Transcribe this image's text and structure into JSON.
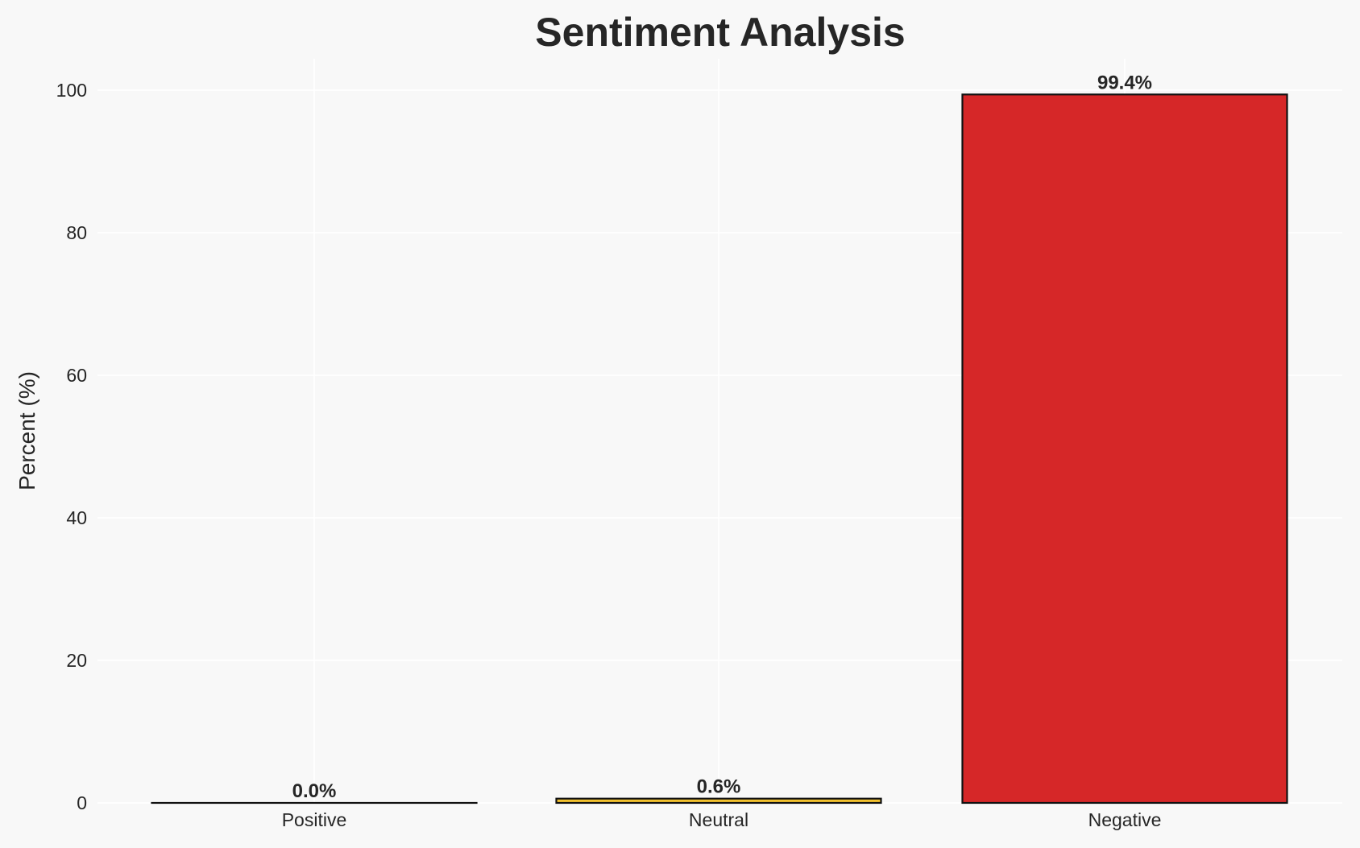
{
  "chart_data": {
    "type": "bar",
    "title": "Sentiment Analysis",
    "xlabel": "",
    "ylabel": "Percent (%)",
    "categories": [
      "Positive",
      "Neutral",
      "Negative"
    ],
    "values": [
      0.0,
      0.6,
      99.4
    ],
    "data_labels": [
      "0.0%",
      "0.6%",
      "99.4%"
    ],
    "colors": [
      "#2ca02c",
      "#f2c12e",
      "#d62728"
    ],
    "edge_color": "#111111",
    "ylim": [
      0,
      104.4
    ],
    "yticks": [
      0,
      20,
      40,
      60,
      80,
      100
    ],
    "grid": true,
    "background": "#f8f8f8"
  }
}
